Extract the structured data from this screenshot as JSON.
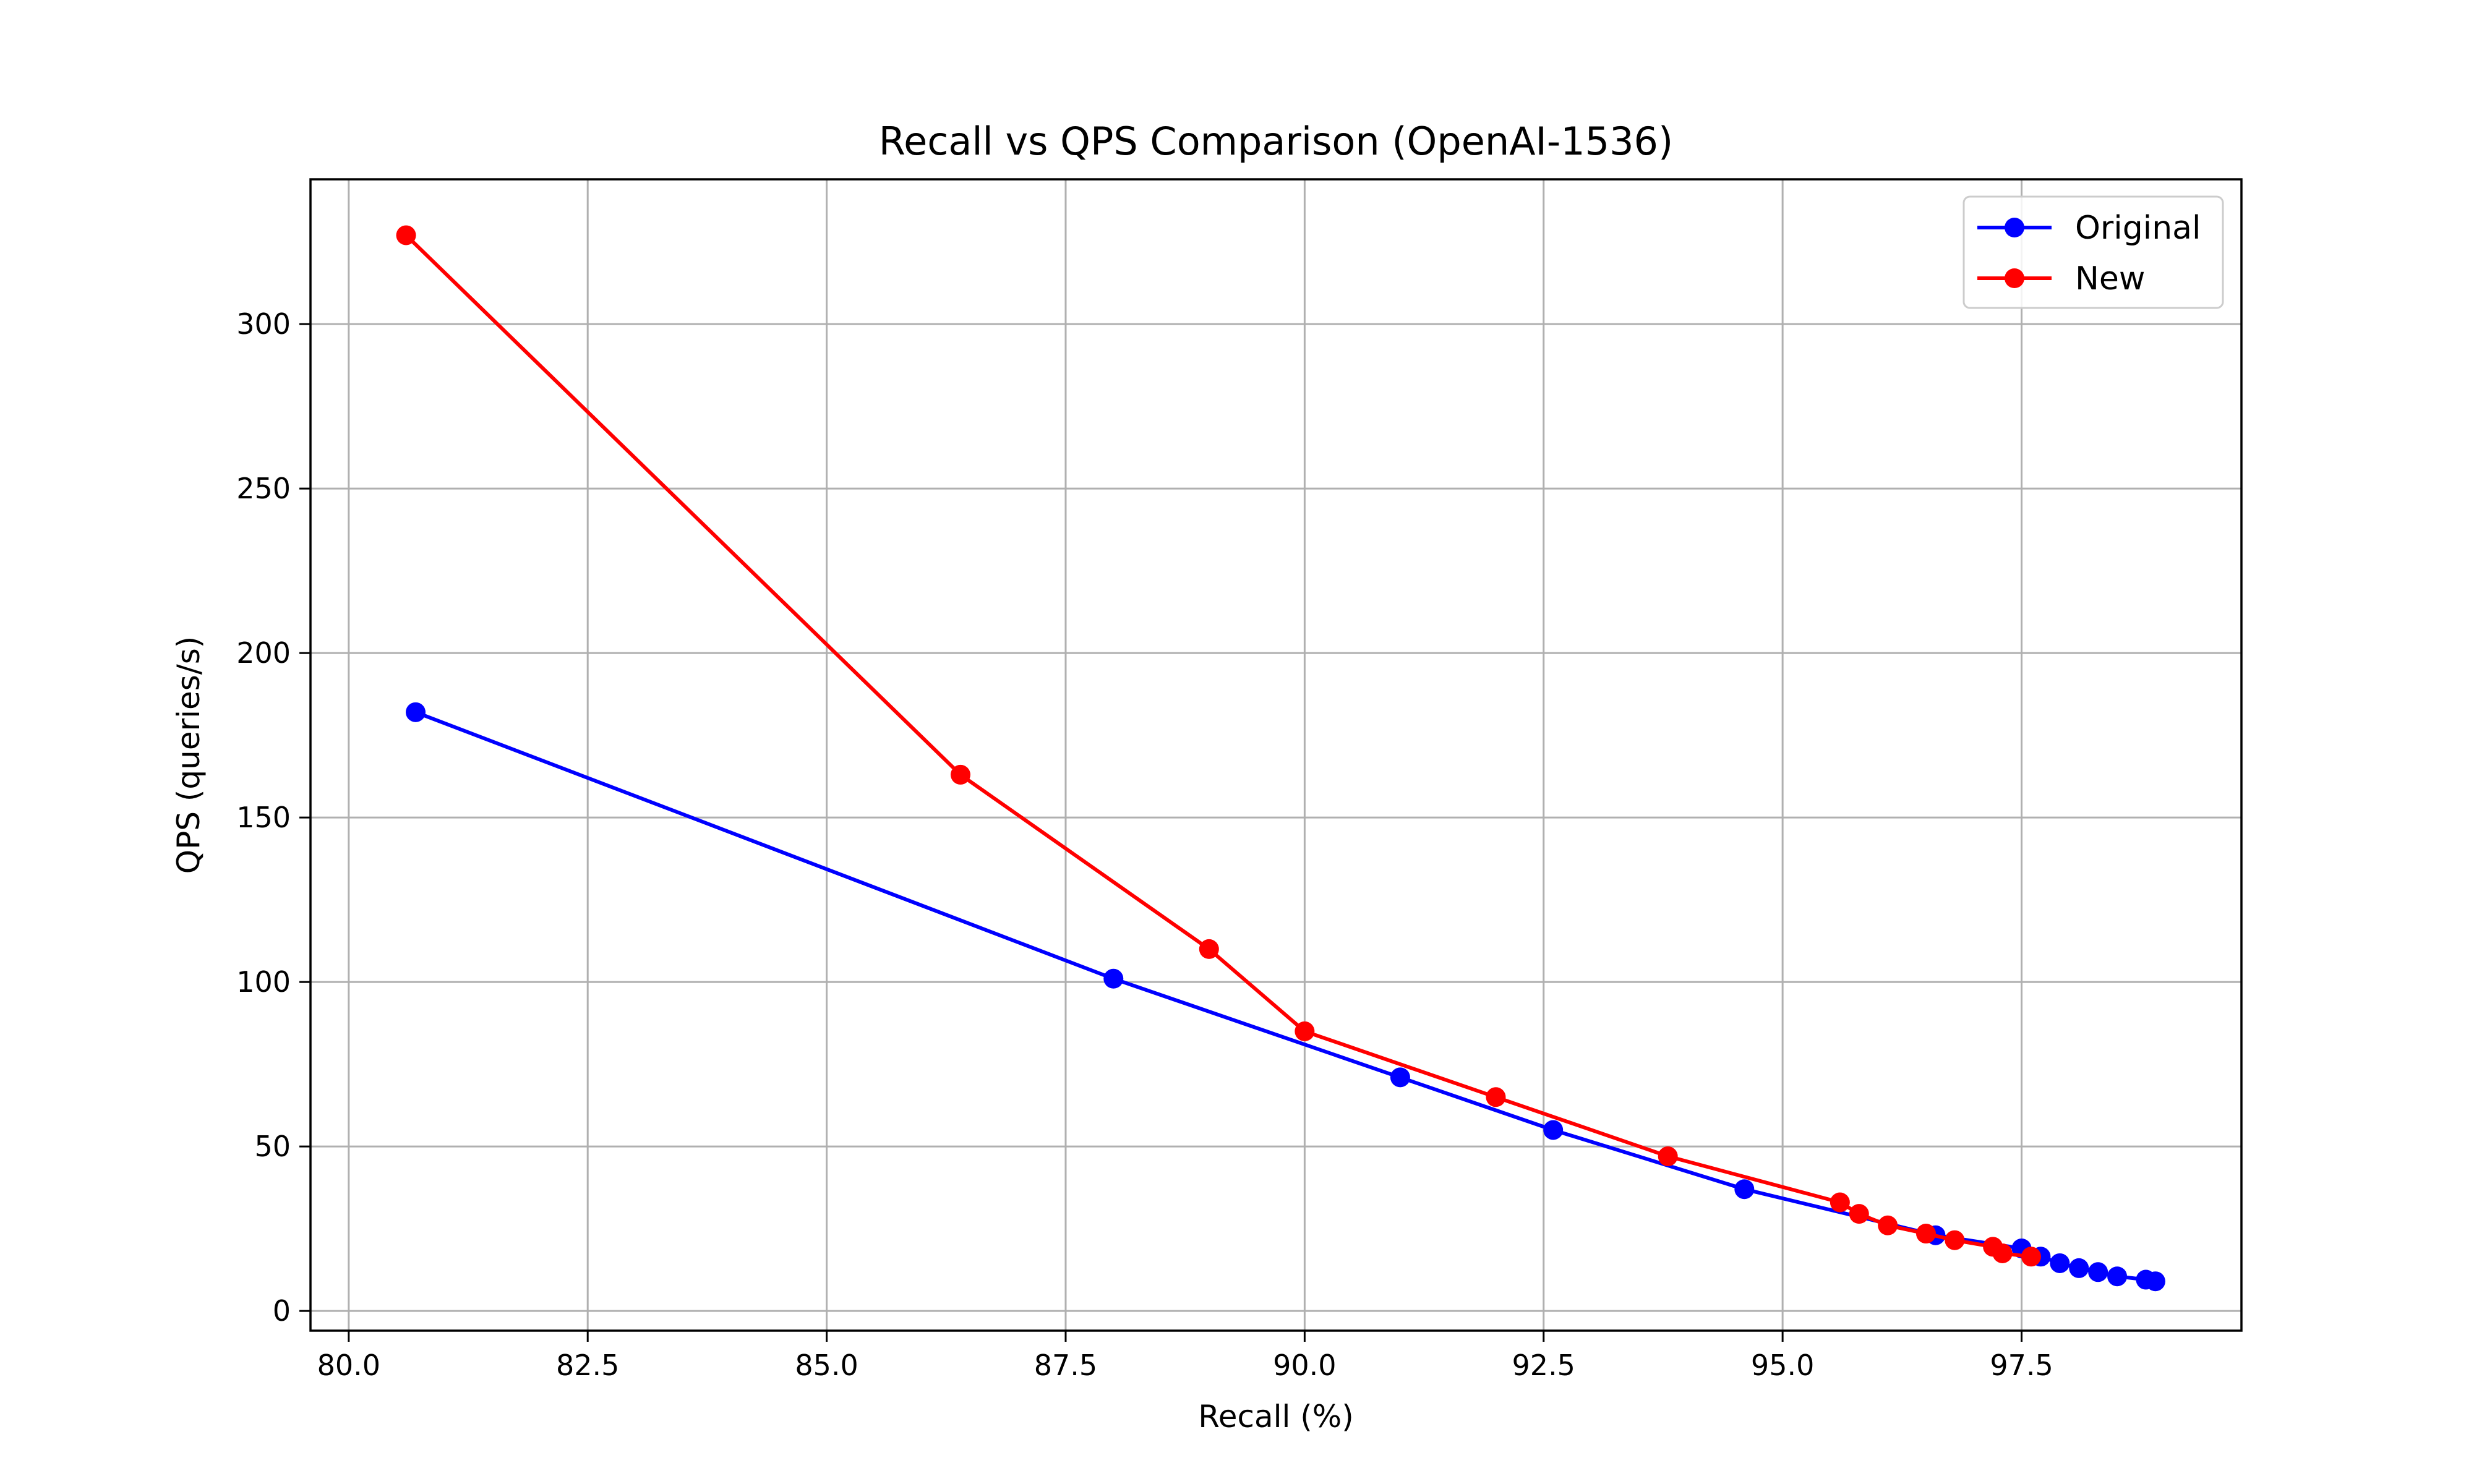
{
  "chart_data": {
    "type": "line",
    "title": "Recall vs QPS Comparison (OpenAI-1536)",
    "xlabel": "Recall (%)",
    "ylabel": "QPS (queries/s)",
    "xlim": [
      79.6,
      99.8
    ],
    "ylim": [
      -6,
      344
    ],
    "xticks": [
      80.0,
      82.5,
      85.0,
      87.5,
      90.0,
      92.5,
      95.0,
      97.5
    ],
    "xtick_labels": [
      "80.0",
      "82.5",
      "85.0",
      "87.5",
      "90.0",
      "92.5",
      "95.0",
      "97.5"
    ],
    "yticks": [
      0,
      50,
      100,
      150,
      200,
      250,
      300
    ],
    "ytick_labels": [
      "0",
      "50",
      "100",
      "150",
      "200",
      "250",
      "300"
    ],
    "grid": true,
    "legend_position": "top-right",
    "series": [
      {
        "name": "Original",
        "color": "#0000ff",
        "marker": "circle",
        "x": [
          80.7,
          88.0,
          91.0,
          92.6,
          94.6,
          96.6,
          97.5,
          97.7,
          97.9,
          98.1,
          98.3,
          98.5,
          98.8,
          98.9
        ],
        "y": [
          182,
          101,
          71,
          55,
          37,
          23,
          19,
          16.5,
          14.5,
          13,
          11.8,
          10.5,
          9.5,
          9
        ]
      },
      {
        "name": "New",
        "color": "#ff0000",
        "marker": "circle",
        "x": [
          80.6,
          86.4,
          89.0,
          90.0,
          92.0,
          93.8,
          95.6,
          95.8,
          96.1,
          96.5,
          96.8,
          97.2,
          97.3,
          97.6
        ],
        "y": [
          327,
          163,
          110,
          85,
          65,
          47,
          33,
          29.5,
          26,
          23.5,
          21.5,
          19.5,
          17.5,
          16.5
        ]
      }
    ]
  }
}
